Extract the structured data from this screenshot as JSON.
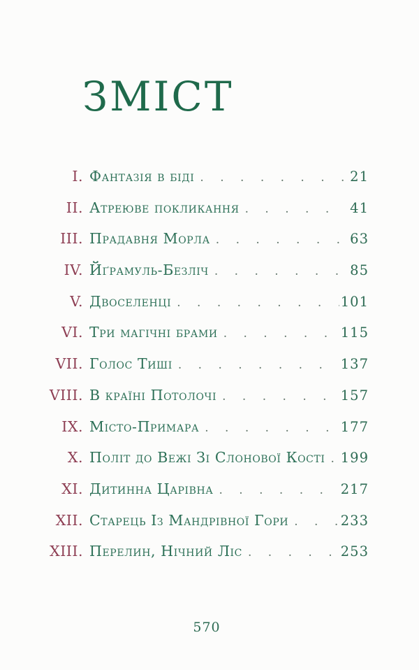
{
  "colors": {
    "title_green": "#1f6a4b",
    "entry_green": "#2e7158",
    "numeral_maroon": "#8e3f54",
    "pagenum_green": "#2d6b53",
    "dots_color": "#64786c",
    "paper": "#fcfcfb"
  },
  "toc": {
    "title": "ЗМІСТ",
    "entries": [
      {
        "numeral": "I.",
        "title": "Фантазія в біді",
        "page": "21"
      },
      {
        "numeral": "II.",
        "title": "Атреюве покликання",
        "page": "41"
      },
      {
        "numeral": "III.",
        "title": "Прадавня Морла",
        "page": "63"
      },
      {
        "numeral": "IV.",
        "title": "Йґрамуль-Безліч",
        "page": "85"
      },
      {
        "numeral": "V.",
        "title": "Двоселенці",
        "page": "101"
      },
      {
        "numeral": "VI.",
        "title": "Три магічні брами",
        "page": "115"
      },
      {
        "numeral": "VII.",
        "title": "Голос Тиші",
        "page": "137"
      },
      {
        "numeral": "VIII.",
        "title": "В країні Потолочі",
        "page": "157"
      },
      {
        "numeral": "IX.",
        "title": "Місто-Примара",
        "page": "177"
      },
      {
        "numeral": "X.",
        "title": "Політ до Вежі Зі Слонової Кості",
        "page": "199"
      },
      {
        "numeral": "XI.",
        "title": "Дитинна Царівна",
        "page": "217"
      },
      {
        "numeral": "XII.",
        "title": "Старець Із Мандрівної Гори",
        "page": "233"
      },
      {
        "numeral": "XIII.",
        "title": "Перелин, Нічний Ліс",
        "page": "253"
      }
    ]
  },
  "footer": {
    "folio": "570"
  }
}
